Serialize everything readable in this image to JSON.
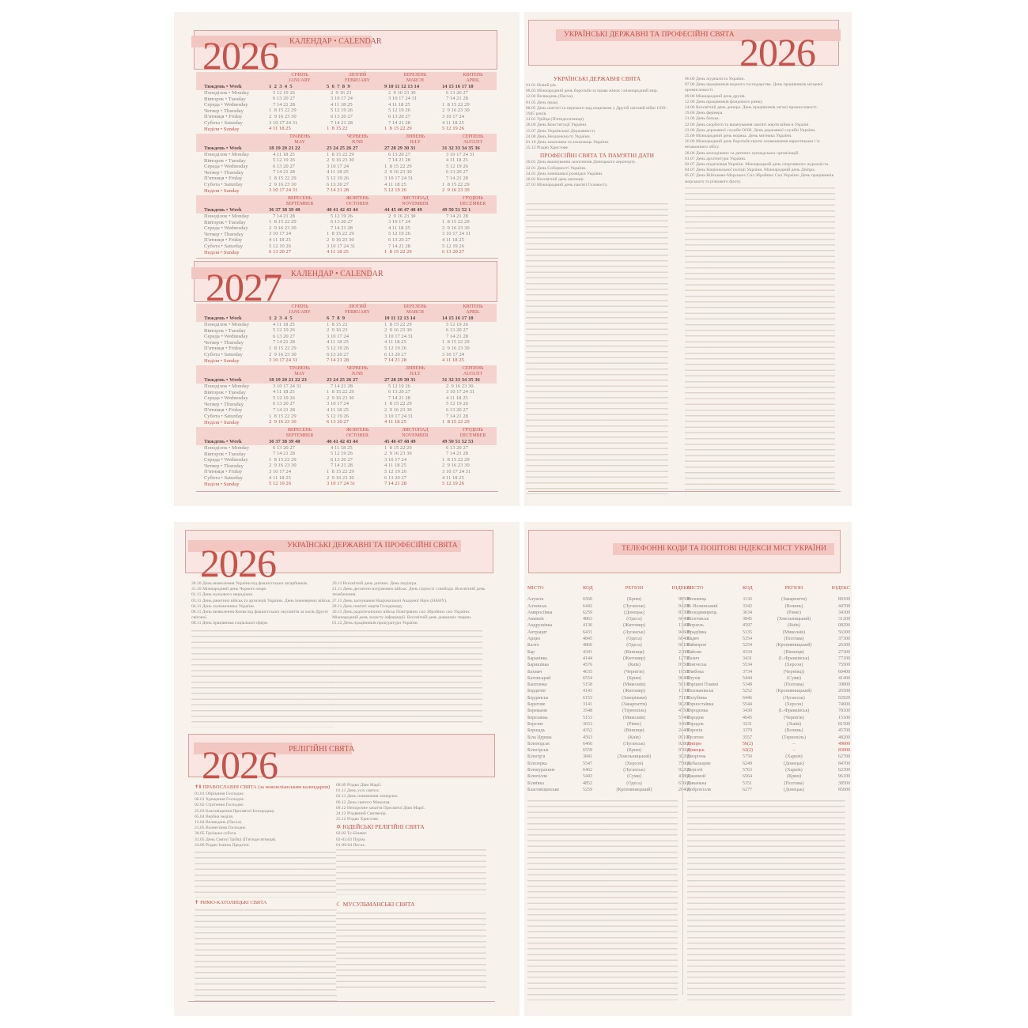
{
  "calendar_labels": {
    "week": "Тиждень • Week",
    "days": [
      "Понеділок • Monday",
      "Вівторок • Tuesday",
      "Середа • Wednesday",
      "Четвер • Thursday",
      "П'ятниця • Friday",
      "Субота • Saturday",
      "Неділя • Sunday"
    ]
  },
  "cal2026": {
    "year": "2026",
    "title": "КАЛЕНДАР • CALENDAR",
    "months": [
      {
        "ua": "СІЧЕНЬ",
        "en": "JANUARY",
        "weeks": "1  2  3  4  5",
        "days": [
          "   5 12 19 26",
          "   6 13 20 27",
          "   7 14 21 28",
          "1  8 15 22 29",
          "2  9 16 23 30",
          "3 10 17 24 31",
          "4 11 18 25"
        ]
      },
      {
        "ua": "ЛЮТИЙ",
        "en": "FEBRUARY",
        "weeks": "5  6  7  8  9",
        "days": [
          "   2  9 16 23",
          "   3 10 17 24",
          "   4 11 18 25",
          "   5 12 19 26",
          "   6 13 20 27",
          "   7 14 21 28",
          "1  8 15 22"
        ]
      },
      {
        "ua": "БЕРЕЗЕНЬ",
        "en": "MARCH",
        "weeks": "9 10 11 12 13 14",
        "days": [
          "   2  9 16 23 30",
          "   3 10 17 24 31",
          "   4 11 18 25",
          "   5 12 19 26",
          "   6 13 20 27",
          "   7 14 21 28",
          "1  8 15 22 29"
        ]
      },
      {
        "ua": "КВІТЕНЬ",
        "en": "APRIL",
        "weeks": "14 15 16 17 18",
        "days": [
          "   6 13 20 27",
          "   7 14 21 28",
          "1  8 15 22 29",
          "2  9 16 23 30",
          "3 10 17 24",
          "4 11 18 25",
          "5 12 19 26"
        ]
      },
      {
        "ua": "ТРАВЕНЬ",
        "en": "MAY",
        "weeks": "18 19 20 21 22",
        "days": [
          "   4 11 18 25",
          "   5 12 19 26",
          "   6 13 20 27",
          "   7 14 21 28",
          "1  8 15 22 29",
          "2  9 16 23 30",
          "3 10 17 24 31"
        ]
      },
      {
        "ua": "ЧЕРВЕНЬ",
        "en": "JUNE",
        "weeks": "23 24 25 26 27",
        "days": [
          "1  8 15 22 29",
          "2  9 16 23 30",
          "3 10 17 24",
          "4 11 18 25",
          "5 12 19 26",
          "6 13 20 27",
          "7 14 21 28"
        ]
      },
      {
        "ua": "ЛИПЕНЬ",
        "en": "JULY",
        "weeks": "27 28 29 30 31",
        "days": [
          "   6 13 20 27",
          "   7 14 21 28",
          "1  8 15 22 29",
          "2  9 16 23 30",
          "3 10 17 24 31",
          "4 11 18 25",
          "5 12 19 26"
        ]
      },
      {
        "ua": "СЕРПЕНЬ",
        "en": "AUGUST",
        "weeks": "31 32 33 34 35 36",
        "days": [
          "   3 10 17 24 31",
          "   4 11 18 25",
          "   5 12 19 26",
          "   6 13 20 27",
          "   7 14 21 28",
          "1  8 15 22 29",
          "2  9 16 23 30"
        ]
      },
      {
        "ua": "ВЕРЕСЕНЬ",
        "en": "SEPTEMBER",
        "weeks": "36 37 38 39 40",
        "days": [
          "   7 14 21 28",
          "1  8 15 22 29",
          "2  9 16 23 30",
          "3 10 17 24",
          "4 11 18 25",
          "5 12 19 26",
          "6 13 20 27"
        ]
      },
      {
        "ua": "ЖОВТЕНЬ",
        "en": "OCTOBER",
        "weeks": "40 41 42 43 44",
        "days": [
          "   5 12 19 26",
          "   6 13 20 27",
          "   7 14 21 28",
          "1  8 15 22 29",
          "2  9 16 23 30",
          "3 10 17 24 31",
          "4 11 18 25"
        ]
      },
      {
        "ua": "ЛИСТОПАД",
        "en": "NOVEMBER",
        "weeks": "44 45 46 47 48 49",
        "days": [
          "   2  9 16 23 30",
          "   3 10 17 24",
          "   4 11 18 25",
          "   5 12 19 26",
          "   6 13 20 27",
          "   7 14 21 28",
          "1  8 15 22 29"
        ]
      },
      {
        "ua": "ГРУДЕНЬ",
        "en": "DECEMBER",
        "weeks": "49 50 51 52 1",
        "days": [
          "   7 14 21 28",
          "1  8 15 22 29",
          "2  9 16 23 30",
          "3 10 17 24 31",
          "4 11 18 25",
          "5 12 19 26",
          "6 13 20 27"
        ]
      }
    ]
  },
  "cal2027": {
    "year": "2027",
    "title": "КАЛЕНДАР • CALENDAR",
    "months": [
      {
        "ua": "СІЧЕНЬ",
        "en": "JANUARY",
        "weeks": "1  2  3  4  5",
        "days": [
          "   4 11 18 25",
          "   5 12 19 26",
          "   6 13 20 27",
          "   7 14 21 28",
          "1  8 15 22 29",
          "2  9 16 23 30",
          "3 10 17 24 31"
        ]
      },
      {
        "ua": "ЛЮТИЙ",
        "en": "FEBRUARY",
        "weeks": "6  7  8  9",
        "days": [
          "1  8 15 22",
          "2  9 16 23",
          "3 10 17 24",
          "4 11 18 25",
          "5 12 19 26",
          "6 13 20 27",
          "7 14 21 28"
        ]
      },
      {
        "ua": "БЕРЕЗЕНЬ",
        "en": "MARCH",
        "weeks": "10 11 12 13 14",
        "days": [
          "1  8 15 22 29",
          "2  9 16 23 30",
          "3 10 17 24 31",
          "4 11 18 25",
          "5 12 19 26",
          "6 13 20 27",
          "7 14 21 28"
        ]
      },
      {
        "ua": "КВІТЕНЬ",
        "en": "APRIL",
        "weeks": "14 15 16 17 18",
        "days": [
          "   5 12 19 26",
          "   6 13 20 27",
          "   7 14 21 28",
          "1  8 15 22 29",
          "2  9 16 23 30",
          "3 10 17 24",
          "4 11 18 25"
        ]
      },
      {
        "ua": "ТРАВЕНЬ",
        "en": "MAY",
        "weeks": "18 19 20 21 22 23",
        "days": [
          "   3 10 17 24 31",
          "   4 11 18 25",
          "   5 12 19 26",
          "   6 13 20 27",
          "   7 14 21 28",
          "1  8 15 22 29",
          "2  9 16 23 30"
        ]
      },
      {
        "ua": "ЧЕРВЕНЬ",
        "en": "JUNE",
        "weeks": "23 24 25 26 27",
        "days": [
          "   7 14 21 28",
          "1  8 15 22 29",
          "2  9 16 23 30",
          "3 10 17 24",
          "4 11 18 25",
          "5 12 19 26",
          "6 13 20 27"
        ]
      },
      {
        "ua": "ЛИПЕНЬ",
        "en": "JULY",
        "weeks": "27 28 29 30 31",
        "days": [
          "   5 12 19 26",
          "   6 13 20 27",
          "   7 14 21 28",
          "1  8 15 22 29",
          "2  9 16 23 30",
          "3 10 17 24 31",
          "4 11 18 25"
        ]
      },
      {
        "ua": "СЕРПЕНЬ",
        "en": "AUGUST",
        "weeks": "31 32 33 34 35 36",
        "days": [
          "   2  9 16 23 30",
          "   3 10 17 24 31",
          "   4 11 18 25",
          "   5 12 19 26",
          "   6 13 20 27",
          "   7 14 21 28",
          "1  8 15 22 29"
        ]
      },
      {
        "ua": "ВЕРЕСЕНЬ",
        "en": "SEPTEMBER",
        "weeks": "36 37 38 39 40",
        "days": [
          "   6 13 20 27",
          "   7 14 21 28",
          "1  8 15 22 29",
          "2  9 16 23 30",
          "3 10 17 24",
          "4 11 18 25",
          "5 12 19 26"
        ]
      },
      {
        "ua": "ЖОВТЕНЬ",
        "en": "OCTOBER",
        "weeks": "40 41 42 43 44",
        "days": [
          "   4 11 18 25",
          "   5 12 19 26",
          "   6 13 20 27",
          "   7 14 21 28",
          "1  8 15 22 29",
          "2  9 16 23 30",
          "3 10 17 24 31"
        ]
      },
      {
        "ua": "ЛИСТОПАД",
        "en": "NOVEMBER",
        "weeks": "45 46 47 48 49",
        "days": [
          "1  8 15 22 29",
          "2  9 16 23 30",
          "3 10 17 24",
          "4 11 18 25",
          "5 12 19 26",
          "6 13 20 27",
          "7 14 21 28"
        ]
      },
      {
        "ua": "ГРУДЕНЬ",
        "en": "DECEMBER",
        "weeks": "49 50 51 52 53",
        "days": [
          "   6 13 20 27",
          "   7 14 21 28",
          "1  8 15 22 29",
          "2  9 16 23 30",
          "3 10 17 24 31",
          "4 11 18 25",
          "5 12 19 26"
        ]
      }
    ]
  },
  "holidays": {
    "year": "2026",
    "title": "УКРАЇНСЬКІ ДЕРЖАВНІ ТА ПРОФЕСІЙНІ СВЯТА",
    "state_title": "УКРАЇНСЬКІ ДЕРЖАВНІ СВЯТА",
    "state": [
      "01.01 Новий рік.",
      "08.03 Міжнародний день боротьби за права жінок і міжнародний мир.",
      "12.04 Великдень (Пасха).",
      "01.05 День праці.",
      "08.05 День пам'яті та перемоги над нацизмом у Другій світовій війні 1939–1945 років.",
      "31.05 Трійця (П'ятидесятниця).",
      "28.06 День Конституції України.",
      "15.07 День Української Державності.",
      "24.08 День Незалежності України.",
      "01.10 День захисника та захисниць України.",
      "25.12 Різдво Христове."
    ],
    "prof_title": "ПРОФЕСІЙНІ СВЯТА ТА ПАМ'ЯТНІ ДАТИ",
    "prof": [
      "20.01 День вшанування захисників Донецького аеропорту.",
      "22.01 День Соборності України.",
      "24.01 День зовнішньої розвідки України.",
      "26.01 Всесвітній день митниці.",
      "27.01 Міжнародний день пам'яті Голокосту."
    ],
    "col2": [
      "06.06 День журналіста України.",
      "07.06 День працівників водного господарства. День працівників місцевої промисловості.",
      "09.06 Міжнародний день друзів.",
      "12.06 День працівників фондового ринку.",
      "14.06 Всесвітній день донора. День працівників легкої промисловості.",
      "19.06 День фермера.",
      "21.06 День батька.",
      "22.06 День скорботи та вшанування пам'яті жертв війни в Україні.",
      "23.06 День державної служби ООН. День державної служби України.",
      "25.06 Міжнародний день моряка. День митника України.",
      "26.06 Міжнародний день боротьби проти зловживання наркотиками і їх незаконного обігу.",
      "28.06 День молодіжних та дитячих громадських організацій.",
      "01.07 День архітектури України.",
      "02.07 День податківця України. Міжнародний день спортивного журналіста.",
      "04.07 День Національної поліції України. Міжнародний день Дніпра.",
      "05.07 День Військово-Морських Сил Збройних Сил України. День працівників морського та річкового флоту."
    ]
  },
  "holidays2": {
    "year": "2026",
    "title": "УКРАЇНСЬКІ ДЕРЖАВНІ ТА ПРОФЕСІЙНІ СВЯТА",
    "col1": [
      "28.10 День визволення України від фашистських загарбників.",
      "31.10 Міжнародний день Чорного моря.",
      "01.11 День нульового меридіана.",
      "03.11 День ракетних військ та артилерії України. День інженерних військ.",
      "04.11 День залізничника України.",
      "06.11 День визволення Києва від фашистських окупантів за часів Другої світової.",
      "08.11 День працівника соціальної сфери."
    ],
    "col2": [
      "20.11 Всесвітній день дитини. День педіатра.",
      "21.11 День десантно-штурмових військ. День гідності і свободи. Всесвітній день телебачення.",
      "27.11 День заснування Національної Академії Наук (НАНУ).",
      "28.11 День пам'яті жертв Голодомору.",
      "30.11 День радіотехнічних військ Повітряних сил Збройних сил України. Міжнародний день захисту інформації. Всесвітній день домашніх тварин.",
      "01.12 День працівників прокуратури України."
    ]
  },
  "religious": {
    "year": "2026",
    "title": "РЕЛІГІЙНІ СВЯТА",
    "orth_title": "ПРАВОСЛАВНІ СВЯТА (за новоюліанським календарем)",
    "orth": [
      "01.01 Обрізання Господнє.",
      "06.01 Хрещення Господнє.",
      "02.02 Стрітення Господнє.",
      "25.03 Благовіщення Пресвятої Богородиці.",
      "05.04 Вербна неділя.",
      "12.04 Великдень (Пасха).",
      "21.05 Вознесіння Господнє.",
      "30.05 Троїцька субота.",
      "31.05 День Святої Трійці (П'ятидесятниця).",
      "24.06 Різдво Іоанна Предтечі."
    ],
    "cath_title": "РИМО-КАТОЛИЦЬКІ СВЯТА",
    "col2": [
      "08.09 Різдво Діви Марії.",
      "01.11 День усіх святих.",
      "02.11 День поминання померлих.",
      "06.12 День святого Миколая.",
      "08.12 Непорочне зачаття Пресвятої Діви Марії.",
      "24.12 Різдвяний Святвечір.",
      "25.12 Різдво Христове."
    ],
    "jew_title": "ЮДЕЙСЬКІ РЕЛІГІЙНІ СВЯТА",
    "jew": [
      "02.02 Ту-Бішват.",
      "02-03.03 Пурім.",
      "01-09.04 Песах."
    ],
    "mus_title": "МУСУЛЬМАНСЬКІ СВЯТА"
  },
  "phones": {
    "title": "ТЕЛЕФОННІ КОДИ ТА ПОШТОВІ ІНДЕКСИ МІСТ УКРАЇНИ",
    "headers": [
      "МІСТО",
      "КОД",
      "РЕГІОН",
      "ІНДЕКС"
    ],
    "left": [
      [
        "Алушта",
        "6560",
        "(Крим)",
        "98500"
      ],
      [
        "Алчевськ",
        "6442",
        "(Луганськ)",
        "94200"
      ],
      [
        "Амвросіївка",
        "6259",
        "(Донецьк)",
        "87300"
      ],
      [
        "Ананьїв",
        "4863",
        "(Одеса)",
        "66400"
      ],
      [
        "Андрушівка",
        "4136",
        "(Житомир)",
        "13400"
      ],
      [
        "Антрацит",
        "6431",
        "(Луганськ)",
        "94600"
      ],
      [
        "Арциз",
        "4845",
        "(Одеса)",
        "68400"
      ],
      [
        "Балта",
        "4866",
        "(Одеса)",
        "66100"
      ],
      [
        "Бар",
        "4341",
        "(Вінниця)",
        "23000"
      ],
      [
        "Баранівка",
        "4144",
        "(Житомир)",
        "12700"
      ],
      [
        "Баришівка",
        "4576",
        "(Київ)",
        "07500"
      ],
      [
        "Бахмач",
        "4635",
        "(Чернігів)",
        "16500"
      ],
      [
        "Бахчисарай",
        "6554",
        "(Крим)",
        "98400"
      ],
      [
        "Баштанка",
        "5158",
        "(Миколаїв)",
        "56100"
      ],
      [
        "Бердичів",
        "4143",
        "(Житомир)",
        "13300"
      ],
      [
        "Бердянськ",
        "6153",
        "(Запоріжжя)",
        "71100"
      ],
      [
        "Берегове",
        "3141",
        "(Закарпаття)",
        "90200"
      ],
      [
        "Бережани",
        "3548",
        "(Тернопіль)",
        "47500"
      ],
      [
        "Березанка",
        "5153",
        "(Миколаїв)",
        "57400"
      ],
      [
        "Березне",
        "3653",
        "(Рівне)",
        "34600"
      ],
      [
        "Бершадь",
        "4352",
        "(Вінниця)",
        "24400"
      ],
      [
        "Біла Церква",
        "4563",
        "(Київ)",
        "09100"
      ],
      [
        "Біловодськ",
        "6466",
        "(Луганськ)",
        "92800"
      ],
      [
        "Білогірськ",
        "6559",
        "(Крим)",
        "97600"
      ],
      [
        "Білогір'я",
        "3841",
        "(Хмельницький)",
        "30200"
      ],
      [
        "Білозерка",
        "5547",
        "(Херсон)",
        "75000"
      ],
      [
        "Білокуракине",
        "6462",
        "(Луганськ)",
        "92200"
      ],
      [
        "Білопілля",
        "5443",
        "(Суми)",
        "41800"
      ],
      [
        "Біляївка",
        "4852",
        "(Одеса)",
        "67600"
      ],
      [
        "Благовіщенське",
        "5259",
        "(Кропивницький)",
        "26400"
      ]
    ],
    "right": [
      [
        "Воловець",
        "3136",
        "(Закарпаття)",
        "89100"
      ],
      [
        "В.-Волинський",
        "3342",
        "(Волинь)",
        "44700"
      ],
      [
        "Володимирець",
        "3634",
        "(Рівне)",
        "34300"
      ],
      [
        "Волочиськ",
        "3845",
        "(Хмельницький)",
        "31200"
      ],
      [
        "Ворзель",
        "4597",
        "(Київ)",
        "08296"
      ],
      [
        "Врадіївка",
        "5135",
        "(Миколаїв)",
        "56300"
      ],
      [
        "Гадяч",
        "5354",
        "(Полтава)",
        "37300"
      ],
      [
        "Гайворон",
        "5254",
        "(Кропивницький)",
        "26300"
      ],
      [
        "Гайсин",
        "4334",
        "(Вінниця)",
        "27300"
      ],
      [
        "Галич",
        "3431",
        "(І.-Франківськ)",
        "77100"
      ],
      [
        "Генічеськ",
        "5534",
        "(Херсон)",
        "75500"
      ],
      [
        "Глибока",
        "3734",
        "(Чернівці)",
        "60400"
      ],
      [
        "Глухів",
        "5444",
        "(Суми)",
        "41400"
      ],
      [
        "Горішні Плавні",
        "5348",
        "(Полтава)",
        "39800"
      ],
      [
        "Голованівськ",
        "5252",
        "(Кропивницький)",
        "26500"
      ],
      [
        "Голубівка",
        "6446",
        "(Луганськ)",
        "92920"
      ],
      [
        "Горностаївка",
        "5544",
        "(Херсон)",
        "74600"
      ],
      [
        "Городенка",
        "3430",
        "(І.-Франківськ)",
        "78100"
      ],
      [
        "Городня",
        "4645",
        "(Чернігів)",
        "15100"
      ],
      [
        "Городок",
        "3231",
        "(Львів)",
        "81500"
      ],
      [
        "Горохів",
        "3379",
        "(Волинь)",
        "45700"
      ],
      [
        "Гусятин",
        "3557",
        "(Тернопіль)",
        "48200"
      ],
      [
        "Дніпро",
        "56(2)",
        "–",
        "49000"
      ],
      [
        "Донецьк",
        "62(2)",
        "–",
        "83000"
      ],
      [
        "Дворічна",
        "5750",
        "(Харків)",
        "62700"
      ],
      [
        "Дебальцеве",
        "6249",
        "(Донецьк)",
        "84700"
      ],
      [
        "Дергачі",
        "5763",
        "(Харків)",
        "62300"
      ],
      [
        "Джанкой",
        "6564",
        "(Крим)",
        "96100"
      ],
      [
        "Диканька",
        "5351",
        "(Полтава)",
        "38500"
      ],
      [
        "Добропілля",
        "6277",
        "(Донецьк)",
        "85000"
      ]
    ],
    "highlighted": [
      "Дніпро",
      "Донецьк"
    ]
  },
  "colors": {
    "accent": "#c6534a",
    "band": "#f2c6c1",
    "paper": "#f7f2ec"
  }
}
